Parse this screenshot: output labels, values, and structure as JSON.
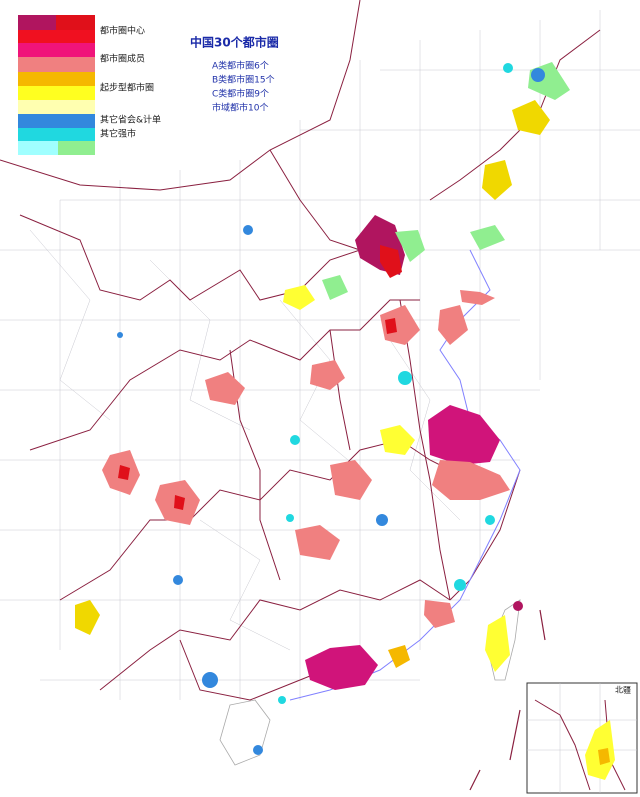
{
  "title": "中国30个都市圈",
  "notes": [
    "A类都市圈6个",
    "B类都市圈15个",
    "C类都市圈9个",
    "市域都市10个"
  ],
  "legend": {
    "items": [
      "都市圈中心",
      "都市圈成员",
      "起步型都市圈",
      "其它省会&计单",
      "其它强市"
    ]
  },
  "inset": {
    "label": "北疆"
  }
}
